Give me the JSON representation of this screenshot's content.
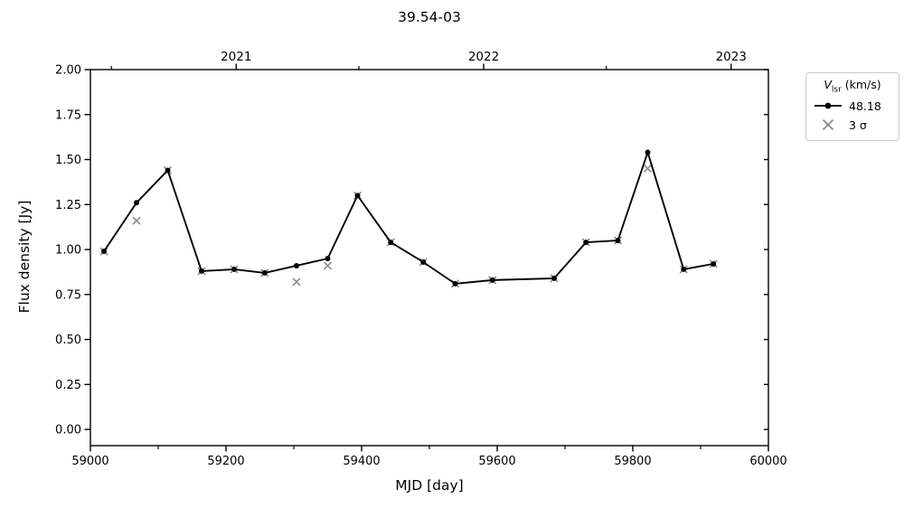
{
  "chart_data": {
    "type": "line",
    "title": "39.54-03",
    "xlabel": "MJD [day]",
    "ylabel": "Flux density [Jy]",
    "xlim": [
      59000,
      60000
    ],
    "ylim": [
      -0.09,
      2.0
    ],
    "grid": false,
    "frame_color": "#000000",
    "x_ticks": {
      "major": [
        {
          "value": 59000,
          "label": "59000"
        },
        {
          "value": 59200,
          "label": "59200"
        },
        {
          "value": 59400,
          "label": "59400"
        },
        {
          "value": 59600,
          "label": "59600"
        },
        {
          "value": 59800,
          "label": "59800"
        },
        {
          "value": 60000,
          "label": "60000"
        }
      ],
      "minor": [
        59100,
        59300,
        59500,
        59700,
        59900
      ]
    },
    "y_ticks": {
      "major": [
        {
          "value": 0.0,
          "label": "0.00"
        },
        {
          "value": 0.25,
          "label": "0.25"
        },
        {
          "value": 0.5,
          "label": "0.50"
        },
        {
          "value": 0.75,
          "label": "0.75"
        },
        {
          "value": 1.0,
          "label": "1.00"
        },
        {
          "value": 1.25,
          "label": "1.25"
        },
        {
          "value": 1.5,
          "label": "1.50"
        },
        {
          "value": 1.75,
          "label": "1.75"
        },
        {
          "value": 2.0,
          "label": "2.00"
        }
      ]
    },
    "top_axis_years": {
      "major": [
        {
          "value": 59215,
          "label": "2021"
        },
        {
          "value": 59580,
          "label": "2022"
        },
        {
          "value": 59945,
          "label": "2023"
        }
      ],
      "minor": [
        59031,
        59396,
        59761
      ]
    },
    "series": [
      {
        "name": "48.18",
        "type": "line_markers",
        "marker": "circle",
        "color": "#000000",
        "x": [
          59020,
          59068,
          59114,
          59164,
          59212,
          59257,
          59304,
          59350,
          59394,
          59443,
          59491,
          59538,
          59593,
          59684,
          59731,
          59778,
          59822,
          59875,
          59919
        ],
        "y": [
          0.99,
          1.26,
          1.44,
          0.88,
          0.89,
          0.87,
          0.91,
          0.95,
          1.3,
          1.04,
          0.93,
          0.81,
          0.83,
          0.84,
          1.04,
          1.05,
          1.54,
          0.89,
          0.92
        ]
      },
      {
        "name": "3 σ",
        "type": "markers",
        "marker": "x",
        "color": "#8a8a8a",
        "x": [
          59020,
          59068,
          59114,
          59164,
          59212,
          59257,
          59304,
          59350,
          59394,
          59443,
          59491,
          59538,
          59593,
          59684,
          59731,
          59778,
          59822,
          59875,
          59919
        ],
        "y": [
          0.99,
          1.16,
          1.44,
          0.88,
          0.89,
          0.87,
          0.82,
          0.91,
          1.3,
          1.04,
          0.93,
          0.81,
          0.83,
          0.84,
          1.04,
          1.05,
          1.45,
          0.89,
          0.92
        ]
      }
    ],
    "legend": {
      "position": "outside-top-right",
      "title_parts": {
        "var": "V",
        "sub": "lsr",
        "rest": " (km/s)"
      },
      "entries": [
        {
          "label": "48.18",
          "marker": "line-circle",
          "color": "#000000"
        },
        {
          "label": "3 σ",
          "marker": "x",
          "color": "#8a8a8a"
        }
      ]
    }
  }
}
